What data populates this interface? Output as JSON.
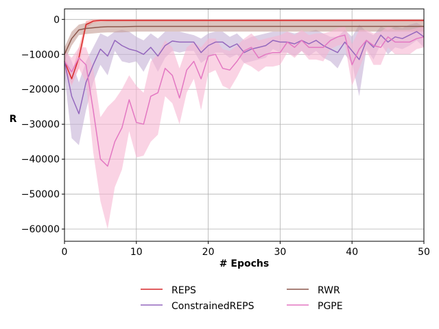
{
  "chart_data": {
    "type": "line",
    "xlabel": "# Epochs",
    "ylabel": "R",
    "xlim": [
      0,
      50
    ],
    "ylim": [
      -63500,
      3000
    ],
    "xticks": [
      0,
      10,
      20,
      30,
      40,
      50
    ],
    "yticks": [
      0,
      -10000,
      -20000,
      -30000,
      -40000,
      -50000,
      -60000
    ],
    "ytick_labels": [
      "0",
      "−10000",
      "−20000",
      "−30000",
      "−40000",
      "−50000",
      "−60000"
    ],
    "grid": true,
    "legend_position": "bottom, outside plot, two columns",
    "x": [
      0,
      1,
      2,
      3,
      4,
      5,
      6,
      7,
      8,
      9,
      10,
      11,
      12,
      13,
      14,
      15,
      16,
      17,
      18,
      19,
      20,
      21,
      22,
      23,
      24,
      25,
      26,
      27,
      28,
      29,
      30,
      31,
      32,
      33,
      34,
      35,
      36,
      37,
      38,
      39,
      40,
      41,
      42,
      43,
      44,
      45,
      46,
      47,
      48,
      49,
      50
    ],
    "series": [
      {
        "name": "REPS",
        "color": "#d62728",
        "band_color": "#ff9896",
        "mean": [
          -12000,
          -17000,
          -11000,
          -1500,
          -500,
          -300,
          -300,
          -300,
          -300,
          -300,
          -300,
          -300,
          -300,
          -300,
          -300,
          -300,
          -300,
          -300,
          -300,
          -300,
          -300,
          -300,
          -300,
          -300,
          -300,
          -300,
          -300,
          -300,
          -300,
          -300,
          -300,
          -300,
          -300,
          -300,
          -300,
          -300,
          -300,
          -300,
          -300,
          -300,
          -300,
          -300,
          -300,
          -300,
          -300,
          -300,
          -300,
          -300,
          -300,
          -300,
          -300
        ],
        "upper": [
          -10000,
          -15500,
          -8000,
          -500,
          0,
          0,
          0,
          0,
          0,
          0,
          0,
          0,
          0,
          0,
          0,
          0,
          0,
          0,
          0,
          0,
          0,
          0,
          0,
          0,
          0,
          0,
          0,
          0,
          0,
          0,
          0,
          0,
          0,
          0,
          0,
          0,
          0,
          0,
          0,
          0,
          0,
          0,
          0,
          0,
          0,
          0,
          0,
          0,
          0,
          0,
          0
        ],
        "lower": [
          -14000,
          -18500,
          -14000,
          -2500,
          -1000,
          -600,
          -600,
          -600,
          -600,
          -600,
          -600,
          -600,
          -600,
          -600,
          -600,
          -600,
          -600,
          -600,
          -600,
          -600,
          -600,
          -600,
          -600,
          -600,
          -600,
          -600,
          -600,
          -600,
          -600,
          -600,
          -600,
          -600,
          -600,
          -600,
          -600,
          -600,
          -600,
          -600,
          -600,
          -600,
          -600,
          -600,
          -600,
          -600,
          -600,
          -600,
          -600,
          -600,
          -600,
          -600,
          -600
        ]
      },
      {
        "name": "ConstrainedREPS",
        "color": "#9467bd",
        "band_color": "#c5b0d5",
        "mean": [
          -12000,
          -22000,
          -27000,
          -18000,
          -13000,
          -8500,
          -10500,
          -6000,
          -7500,
          -8500,
          -9000,
          -10000,
          -8000,
          -10500,
          -7500,
          -6200,
          -6500,
          -6500,
          -6500,
          -9500,
          -7500,
          -6500,
          -6500,
          -8000,
          -7000,
          -9500,
          -8500,
          -8000,
          -7500,
          -6000,
          -6500,
          -6500,
          -7000,
          -6000,
          -7000,
          -6000,
          -7500,
          -8500,
          -9500,
          -6500,
          -9000,
          -11500,
          -6000,
          -8000,
          -4500,
          -6500,
          -5000,
          -5500,
          -4500,
          -3500,
          -5000
        ],
        "upper": [
          -8000,
          -12000,
          -18000,
          -12000,
          -8000,
          -4000,
          -5000,
          -3500,
          -3000,
          -3500,
          -5000,
          -6000,
          -4000,
          -5500,
          -3500,
          -3500,
          -3500,
          -4000,
          -4500,
          -5500,
          -4000,
          -3500,
          -3500,
          -5000,
          -4000,
          -6000,
          -5000,
          -4500,
          -4000,
          -3500,
          -3500,
          -3500,
          -4000,
          -3500,
          -3500,
          -3000,
          -4000,
          -5000,
          -5000,
          -3000,
          -5000,
          -1500,
          -3500,
          -4500,
          -2000,
          -3000,
          -2000,
          -2500,
          -1500,
          -1000,
          -2000
        ],
        "lower": [
          -16000,
          -34000,
          -36000,
          -26000,
          -18000,
          -13000,
          -16000,
          -9000,
          -12000,
          -12500,
          -12000,
          -15000,
          -11000,
          -15000,
          -11000,
          -9000,
          -9500,
          -9000,
          -9000,
          -12500,
          -11000,
          -9500,
          -9500,
          -11000,
          -10000,
          -12500,
          -12000,
          -11500,
          -11000,
          -8500,
          -9500,
          -9500,
          -10500,
          -9000,
          -10500,
          -9000,
          -11000,
          -12000,
          -14000,
          -10000,
          -12500,
          -22000,
          -8500,
          -11500,
          -7000,
          -10000,
          -8000,
          -8500,
          -7500,
          -6000,
          -8000
        ]
      },
      {
        "name": "RWR",
        "color": "#8c564b",
        "band_color": "#c49c94",
        "mean": [
          -10000,
          -5500,
          -3000,
          -2600,
          -2400,
          -2200,
          -2100,
          -2100,
          -2100,
          -2050,
          -2000,
          -2000,
          -2000,
          -2000,
          -2000,
          -2000,
          -2000,
          -2000,
          -2000,
          -2000,
          -2000,
          -2000,
          -2000,
          -2000,
          -2000,
          -2000,
          -2000,
          -2000,
          -2000,
          -2000,
          -2000,
          -2000,
          -2000,
          -2000,
          -2000,
          -2000,
          -2000,
          -2000,
          -2000,
          -2000,
          -2000,
          -2000,
          -2000,
          -2000,
          -2000,
          -2000,
          -2000,
          -2000,
          -2000,
          -2000,
          -2000
        ],
        "upper": [
          -8000,
          -3500,
          -1500,
          -1000,
          -800,
          -600,
          -500,
          -500,
          -500,
          -500,
          -500,
          -500,
          -500,
          -500,
          -500,
          -500,
          -500,
          -500,
          -500,
          -500,
          -500,
          -500,
          -500,
          -500,
          -500,
          -500,
          -500,
          -500,
          -500,
          -500,
          -500,
          -500,
          -500,
          -500,
          -500,
          -500,
          -500,
          -500,
          -500,
          -500,
          -500,
          -500,
          -500,
          -500,
          -500,
          -500,
          -500,
          -500,
          -500,
          -500,
          -500
        ],
        "lower": [
          -12000,
          -7500,
          -4500,
          -4200,
          -4000,
          -3800,
          -3700,
          -3700,
          -3700,
          -3600,
          -3500,
          -3500,
          -3500,
          -3500,
          -3500,
          -3500,
          -3500,
          -3500,
          -3500,
          -3500,
          -3500,
          -3500,
          -3500,
          -3500,
          -3500,
          -3500,
          -3500,
          -3500,
          -3500,
          -3500,
          -3500,
          -3500,
          -3500,
          -3500,
          -3500,
          -3500,
          -3500,
          -3500,
          -3500,
          -3500,
          -3500,
          -3500,
          -3500,
          -3500,
          -3500,
          -3500,
          -3500,
          -3500,
          -3500,
          -3500,
          -3500
        ]
      },
      {
        "name": "PGPE",
        "color": "#e377c2",
        "band_color": "#f7b6d2",
        "mean": [
          -12000,
          -15000,
          -11000,
          -13000,
          -26000,
          -40000,
          -42000,
          -35000,
          -31000,
          -23000,
          -29500,
          -30000,
          -22000,
          -21000,
          -14000,
          -16000,
          -22500,
          -14500,
          -12000,
          -17000,
          -10500,
          -10000,
          -14000,
          -14500,
          -12000,
          -9000,
          -8000,
          -11000,
          -10000,
          -9500,
          -9500,
          -6500,
          -8000,
          -6000,
          -8000,
          -8000,
          -8000,
          -6000,
          -5000,
          -4500,
          -13000,
          -8500,
          -6000,
          -7500,
          -8000,
          -5000,
          -6500,
          -6500,
          -6500,
          -5500,
          -5000
        ],
        "upper": [
          -9000,
          -11000,
          -8000,
          -8000,
          -14000,
          -28000,
          -25000,
          -23000,
          -20000,
          -16000,
          -19000,
          -21000,
          -12000,
          -10000,
          -6000,
          -8000,
          -14000,
          -8000,
          -6500,
          -8000,
          -5500,
          -5500,
          -8500,
          -9000,
          -7500,
          -5500,
          -4000,
          -6000,
          -5500,
          -5000,
          -4500,
          -3500,
          -4500,
          -3000,
          -4500,
          -4000,
          -4000,
          -3500,
          -2500,
          -2000,
          -7000,
          -3000,
          -3000,
          -4000,
          -3500,
          -2000,
          -3000,
          -3000,
          -3000,
          -2500,
          -2000
        ],
        "lower": [
          -15000,
          -19000,
          -14000,
          -18000,
          -38000,
          -52000,
          -60000,
          -48000,
          -43000,
          -32000,
          -39500,
          -39000,
          -35000,
          -33000,
          -22000,
          -24000,
          -30000,
          -21000,
          -17000,
          -26000,
          -15500,
          -14500,
          -19000,
          -20000,
          -16500,
          -12500,
          -13500,
          -15000,
          -13500,
          -13500,
          -13000,
          -9500,
          -11000,
          -9000,
          -11500,
          -11500,
          -12000,
          -8500,
          -7500,
          -7000,
          -19000,
          -14000,
          -9000,
          -13000,
          -13000,
          -8000,
          -10000,
          -10000,
          -10000,
          -8500,
          -8000
        ]
      }
    ]
  }
}
